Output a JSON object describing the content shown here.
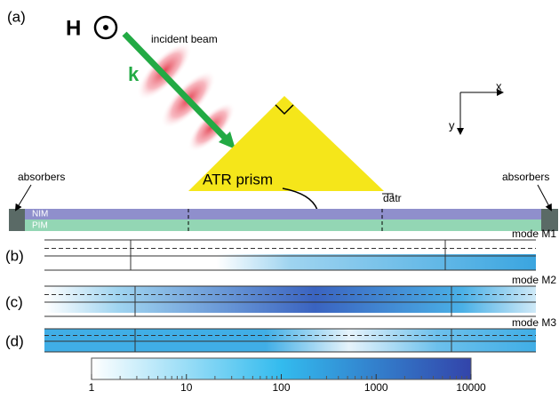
{
  "panels": [
    {
      "label": "(a)",
      "field": "H",
      "wavevector": "k",
      "beam": "incident beam",
      "prism": "ATR prism",
      "distance": "datr",
      "layers": [
        "NIM",
        "PIM"
      ],
      "absorbers": [
        "absorbers",
        "absorbers"
      ],
      "axes": [
        "x",
        "y"
      ]
    },
    {
      "label": "(b)",
      "mode": "mode M1"
    },
    {
      "label": "(c)",
      "mode": "mode M2"
    },
    {
      "label": "(d)",
      "mode": "mode M3"
    }
  ],
  "colorbar": {
    "scale": "log",
    "ticks": [
      1,
      10,
      100,
      1000,
      10000
    ]
  }
}
